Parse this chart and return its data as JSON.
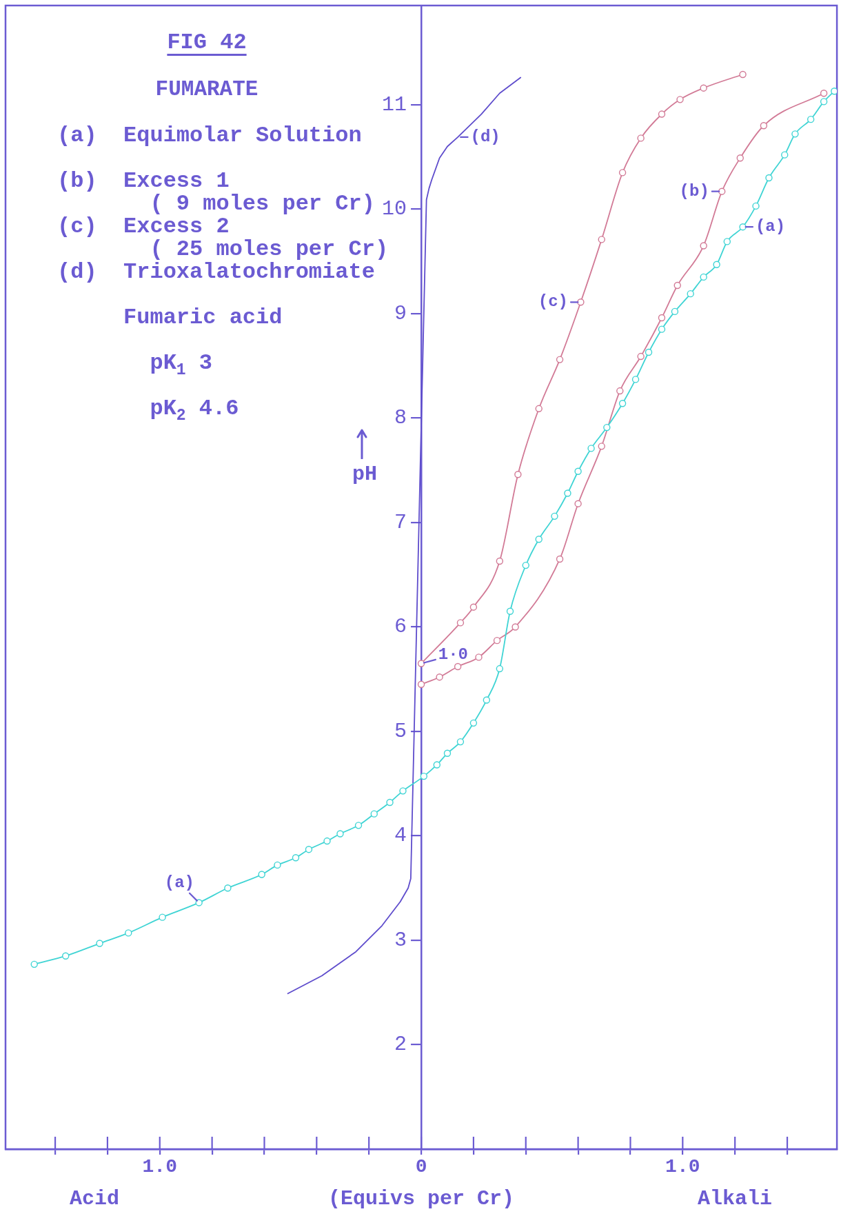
{
  "chart_data": {
    "type": "line",
    "title": "FIG 42",
    "subtitle": "FUMARATE",
    "xlabel": "(Equivs per Cr)",
    "ylabel": "pH",
    "xlim": [
      -1.59,
      1.59
    ],
    "ylim": [
      1,
      11.95
    ],
    "xticks": [
      {
        "value": -1.4,
        "label": null
      },
      {
        "value": -1.2,
        "label": null
      },
      {
        "value": -1,
        "label": "1.0"
      },
      {
        "value": -0.8,
        "label": null
      },
      {
        "value": -0.6,
        "label": null
      },
      {
        "value": -0.4,
        "label": null
      },
      {
        "value": -0.2,
        "label": null
      },
      0,
      {
        "value": 0.2,
        "label": null
      },
      {
        "value": 0.4,
        "label": null
      },
      {
        "value": 0.6,
        "label": null
      },
      {
        "value": 0.8,
        "label": null
      },
      {
        "value": 1,
        "label": "1.0"
      },
      {
        "value": 1.2,
        "label": null
      },
      {
        "value": 1.4,
        "label": null
      }
    ],
    "yticks": [
      2,
      3,
      4,
      5,
      6,
      7,
      8,
      9,
      10,
      11
    ],
    "marker": "circle",
    "line_style": "solid",
    "series": [
      {
        "color": "#3fd4d4",
        "x": [
          -1.48,
          -1.36,
          -1.23,
          -1.12,
          -0.99,
          -0.85,
          -0.74,
          -0.61,
          -0.55,
          -0.48,
          -0.43,
          -0.36,
          -0.31,
          -0.24,
          -0.18,
          -0.12,
          -0.07,
          0.01,
          0.06,
          0.1,
          0.15,
          0.2,
          0.25,
          0.3,
          0.34,
          0.4,
          0.45,
          0.51,
          0.56,
          0.6,
          0.65,
          0.71,
          0.77,
          0.82,
          0.87,
          0.92,
          0.97,
          1.03,
          1.08,
          1.13,
          1.17,
          1.23,
          1.28,
          1.33,
          1.39,
          1.43,
          1.49,
          1.54,
          1.58
        ],
        "values": [
          2.77,
          2.85,
          2.97,
          3.07,
          3.22,
          3.36,
          3.5,
          3.63,
          3.72,
          3.79,
          3.87,
          3.95,
          4.02,
          4.1,
          4.21,
          4.32,
          4.43,
          4.57,
          4.68,
          4.79,
          4.9,
          5.08,
          5.3,
          5.6,
          6.15,
          6.59,
          6.84,
          7.06,
          7.28,
          7.49,
          7.71,
          7.91,
          8.14,
          8.37,
          8.63,
          8.85,
          9.02,
          9.19,
          9.35,
          9.47,
          9.69,
          9.83,
          10.03,
          10.3,
          10.52,
          10.72,
          10.86,
          11.03,
          11.13
        ]
      },
      {
        "color": "#d27a96",
        "x": [
          0,
          0.07,
          0.14,
          0.22,
          0.29,
          0.36,
          0.53,
          0.6,
          0.69,
          0.76,
          0.84,
          0.92,
          0.98,
          1.08,
          1.15,
          1.22,
          1.31,
          1.54
        ],
        "values": [
          5.45,
          5.52,
          5.62,
          5.71,
          5.87,
          6,
          6.65,
          7.18,
          7.73,
          8.26,
          8.59,
          8.96,
          9.27,
          9.65,
          10.17,
          10.49,
          10.8,
          11.11
        ]
      },
      {
        "color": "#d27a96",
        "x": [
          0,
          0.15,
          0.2,
          0.3,
          0.37,
          0.45,
          0.53,
          0.61,
          0.69,
          0.77,
          0.84,
          0.92,
          0.99,
          1.08,
          1.23
        ],
        "values": [
          5.65,
          6.04,
          6.19,
          6.63,
          7.46,
          8.09,
          8.56,
          9.11,
          9.71,
          10.35,
          10.68,
          10.91,
          11.05,
          11.16,
          11.29
        ]
      },
      {
        "color": "#5e4ccc",
        "marker": "none",
        "x": [
          -0.51,
          -0.38,
          -0.25,
          -0.15,
          -0.08,
          -0.05,
          -0.04,
          0.02,
          0.03,
          0.04,
          0.07,
          0.1,
          0.14,
          0.23,
          0.3,
          0.38
        ],
        "values": [
          2.49,
          2.66,
          2.89,
          3.14,
          3.37,
          3.5,
          3.59,
          10.09,
          10.2,
          10.28,
          10.49,
          10.6,
          10.69,
          10.91,
          11.11,
          11.26
        ]
      }
    ],
    "annotations": [
      "(a)  Equimolar Solution",
      "(b)  Excess 1\n       ( 9 moles per Cr)",
      "(c)  Excess 2\n       ( 25 moles per Cr)",
      "(d)  Trioxalatochromiate",
      "     Fumaric acid",
      "       pK$_{1}$ 3",
      "       pK$_{2}$ 4.6",
      {
        "text": "(a)",
        "x": -0.85,
        "y": 3.36
      },
      {
        "text": "(a)",
        "x": 1.23,
        "y": 9.83
      },
      {
        "text": "(b)",
        "x": 1.15,
        "y": 10.17
      },
      {
        "text": "(c)",
        "x": 0.61,
        "y": 9.11
      },
      {
        "text": "(d)",
        "x": 0.14,
        "y": 10.69
      },
      {
        "text": "1·0",
        "x": 0,
        "y": 5.65
      },
      "Acid",
      "Alkali"
    ]
  }
}
